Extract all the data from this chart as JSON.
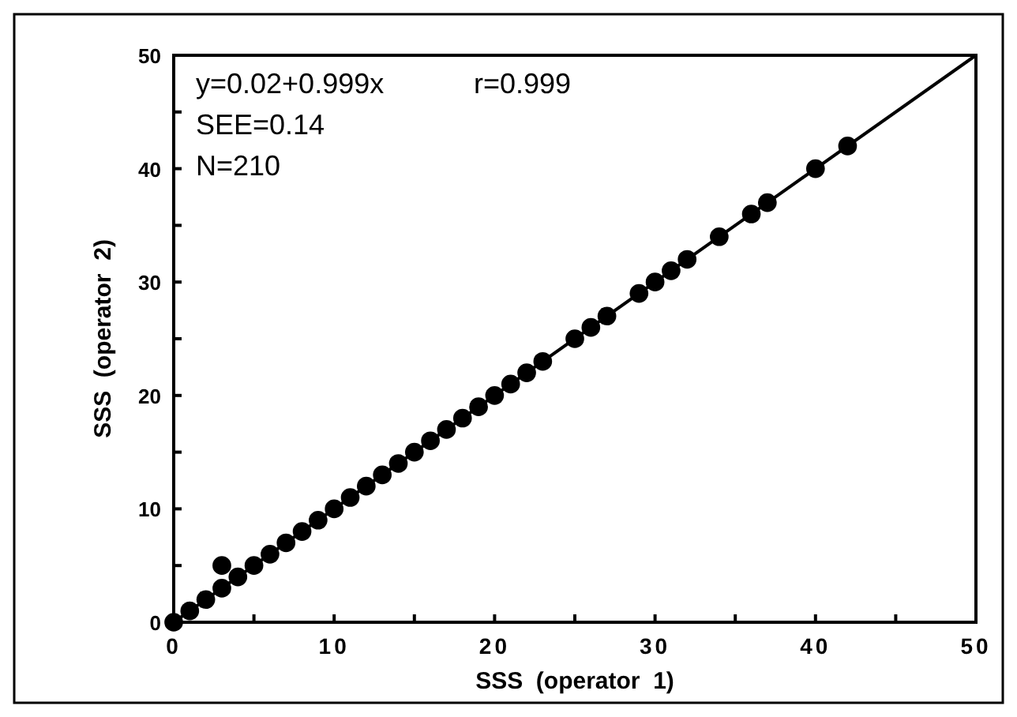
{
  "chart_data": {
    "type": "scatter",
    "xlabel": "SSS  (operator  1)",
    "ylabel": "SSS  (operator  2)",
    "xlim": [
      0,
      50
    ],
    "ylim": [
      0,
      50
    ],
    "xticks": [
      0,
      {
        "value": 5,
        "label": null
      },
      10,
      {
        "value": 15,
        "label": null
      },
      20,
      {
        "value": 25,
        "label": null
      },
      30,
      {
        "value": 35,
        "label": null
      },
      40,
      {
        "value": 45,
        "label": null
      },
      50
    ],
    "yticks": [
      0,
      {
        "value": 5,
        "label": null
      },
      10,
      {
        "value": 15,
        "label": null
      },
      20,
      {
        "value": 25,
        "label": null
      },
      30,
      {
        "value": 35,
        "label": null
      },
      40,
      {
        "value": 45,
        "label": null
      },
      50
    ],
    "grid": false,
    "marker": "circle",
    "annotations": [
      "y=0.02+0.999x",
      "r=0.999",
      "SEE=0.14",
      "N=210"
    ],
    "series": [
      {
        "color": "#000000",
        "x": [
          0,
          1,
          2,
          3,
          3,
          4,
          5,
          6,
          7,
          8,
          9,
          10,
          11,
          12,
          13,
          14,
          15,
          16,
          17,
          18,
          19,
          20,
          21,
          22,
          23,
          25,
          26,
          27,
          29,
          30,
          31,
          32,
          34,
          36,
          37,
          40,
          42
        ],
        "values": [
          0,
          1,
          2,
          3,
          5,
          4,
          5,
          6,
          7,
          8,
          9,
          10,
          11,
          12,
          13,
          14,
          15,
          16,
          17,
          18,
          19,
          20,
          21,
          22,
          23,
          25,
          26,
          27,
          29,
          30,
          31,
          32,
          34,
          36,
          37,
          40,
          42
        ]
      },
      {
        "type": "line",
        "color": "#000000",
        "line_style": "solid",
        "marker": "none",
        "x": [
          0,
          50
        ],
        "values": [
          0,
          50
        ]
      }
    ]
  }
}
